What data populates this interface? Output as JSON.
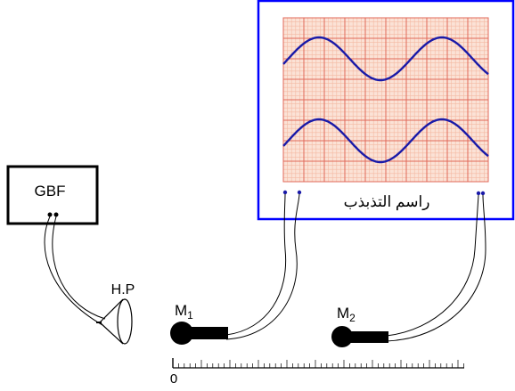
{
  "generator": {
    "label": "GBF"
  },
  "speaker": {
    "label": "H.P"
  },
  "microphones": [
    {
      "label": "M",
      "subscript": "1"
    },
    {
      "label": "M",
      "subscript": "2"
    }
  ],
  "oscilloscope": {
    "label": "راسم التذبذب"
  },
  "ruler": {
    "zero_label": "0"
  },
  "colors": {
    "screen_border": "#0000ff",
    "grid_background": "#fbe2d6",
    "grid_minor": "#f4b9a3",
    "grid_major": "#e06a5a",
    "trace": "#1a1aa8",
    "probe": "#1a1aa8",
    "mic_body": "#000000"
  }
}
